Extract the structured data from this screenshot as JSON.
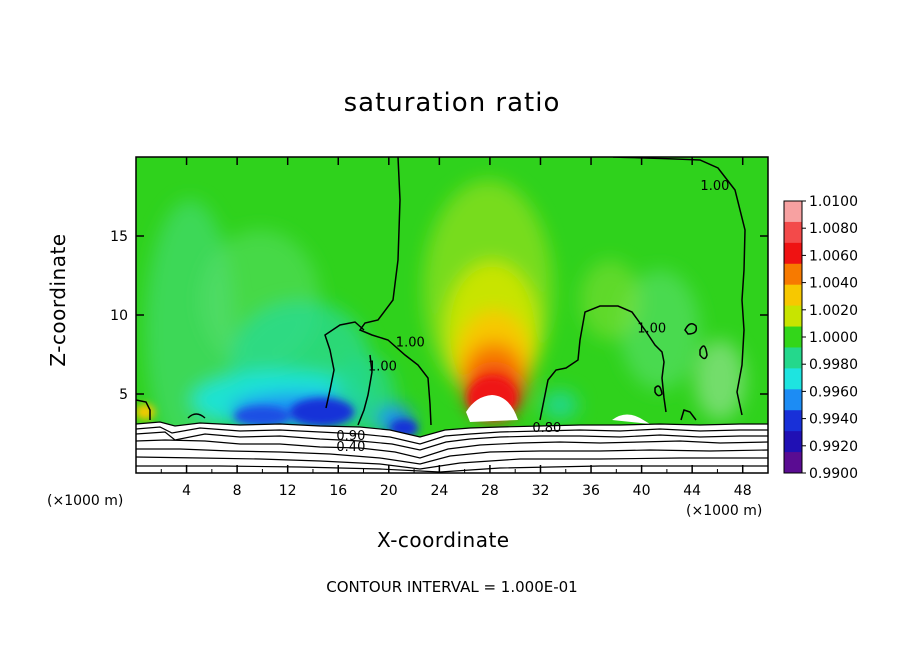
{
  "chart_data": {
    "type": "heatmap",
    "title": "saturation ratio",
    "xlabel": "X-coordinate",
    "ylabel": "Z-coordinate",
    "x_unit_note_left": "(×1000 m)",
    "x_unit_note_right": "(×1000 m)",
    "footer": "CONTOUR INTERVAL = 1.000E-01",
    "xlim": [
      0,
      50
    ],
    "ylim": [
      0,
      20
    ],
    "x_ticks": [
      "4",
      "8",
      "12",
      "16",
      "20",
      "24",
      "28",
      "32",
      "36",
      "40",
      "44",
      "48"
    ],
    "x_tick_values": [
      4,
      8,
      12,
      16,
      20,
      24,
      28,
      32,
      36,
      40,
      44,
      48
    ],
    "y_ticks": [
      "5",
      "10",
      "15"
    ],
    "y_tick_values": [
      5,
      10,
      15
    ],
    "colorbar": {
      "levels": [
        "1.0100",
        "1.0080",
        "1.0060",
        "1.0040",
        "1.0020",
        "1.0000",
        "0.9980",
        "0.9960",
        "0.9940",
        "0.9920",
        "0.9900"
      ],
      "colors": [
        "#f7a1a1",
        "#f34a4a",
        "#ef1212",
        "#f77a00",
        "#f7c800",
        "#c8e400",
        "#33d61a",
        "#24d88c",
        "#1ee4e0",
        "#1c8cf4",
        "#1830d8",
        "#2010b4",
        "#5a0c92"
      ]
    },
    "contour_labels": [
      {
        "text": "1.00",
        "x": 45.8,
        "y": 17.9
      },
      {
        "text": "1.00",
        "x": 21.7,
        "y": 8.0
      },
      {
        "text": "1.00",
        "x": 19.5,
        "y": 6.5
      },
      {
        "text": "1.00",
        "x": 40.8,
        "y": 8.9
      },
      {
        "text": "0.90",
        "x": 17.0,
        "y": 2.1
      },
      {
        "text": "0.80",
        "x": 32.5,
        "y": 2.6
      },
      {
        "text": "0.40",
        "x": 17.0,
        "y": 1.4
      }
    ]
  }
}
